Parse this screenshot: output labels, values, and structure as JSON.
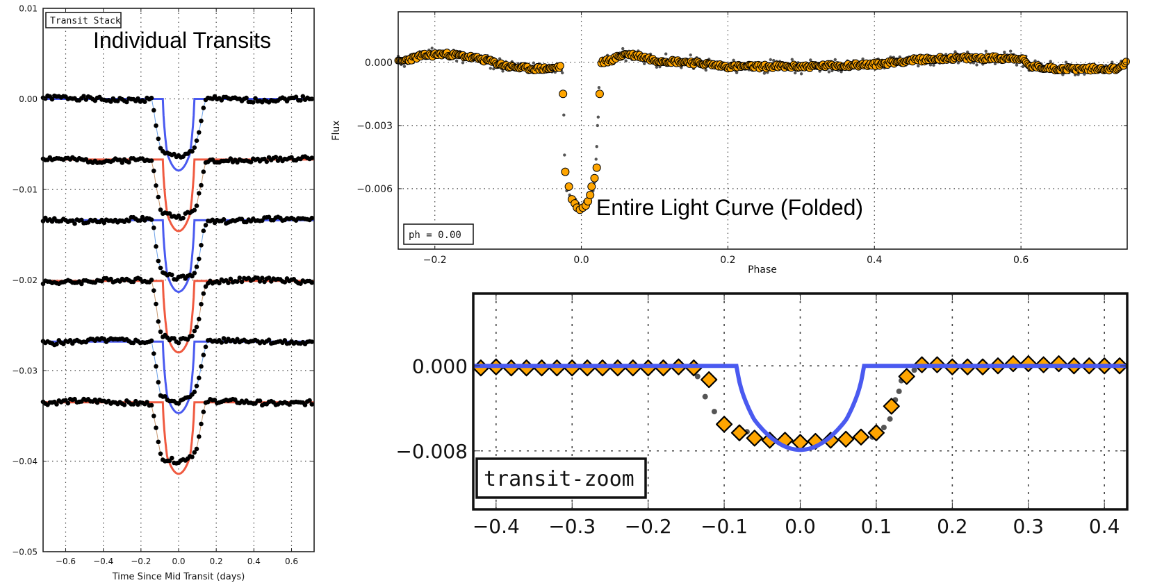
{
  "colors": {
    "blue_model": "#4a5af0",
    "blue_connector": "#6aa0e8",
    "red_model": "#f05a40",
    "red_connector": "#c89870",
    "data_point": "#000000",
    "binned_fill": "#ffa500",
    "raw_point": "#555555",
    "grid": "#444444"
  },
  "chart_data": [
    {
      "id": "individual-transits",
      "type": "line",
      "title": "Individual Transits",
      "label_box": "Transit Stack",
      "xlabel": "Time Since Mid Transit (days)",
      "ylabel": "",
      "xlim": [
        -0.72,
        0.72
      ],
      "ylim": [
        -0.05,
        0.01
      ],
      "grid": true,
      "xticks": [
        -0.6,
        -0.4,
        -0.2,
        0.0,
        0.2,
        0.4,
        0.6
      ],
      "xtick_labels": [
        "−0.6",
        "−0.4",
        "−0.2",
        "0.0",
        "0.2",
        "0.4",
        "0.6"
      ],
      "yticks": [
        0.01,
        0.0,
        -0.01,
        -0.02,
        -0.03,
        -0.04,
        -0.05
      ],
      "ytick_labels": [
        "0.01",
        "0.00",
        "−0.01",
        "−0.02",
        "−0.03",
        "−0.04",
        "−0.05"
      ],
      "model": {
        "half_width_days": 0.083,
        "ingress_days": 0.022,
        "depth": 0.0079,
        "ingress_depth": 0.006
      },
      "data_shape": {
        "x": [
          -0.14,
          -0.12,
          -0.1,
          -0.08,
          -0.06,
          -0.04,
          -0.02,
          0.0,
          0.02,
          0.04,
          0.06,
          0.08,
          0.1,
          0.12,
          0.14
        ],
        "y": [
          0.0,
          -0.0028,
          -0.0055,
          -0.0061,
          -0.0062,
          -0.0063,
          -0.0064,
          -0.0065,
          -0.0064,
          -0.0062,
          -0.006,
          -0.0058,
          -0.0048,
          -0.0026,
          -0.0004
        ]
      },
      "series": [
        {
          "name": "transit-1",
          "offset": 0.0,
          "color": "blue",
          "noise_seed": 1
        },
        {
          "name": "transit-2",
          "offset": -0.0067,
          "color": "red",
          "noise_seed": 2
        },
        {
          "name": "transit-3",
          "offset": -0.0134,
          "color": "blue",
          "noise_seed": 3
        },
        {
          "name": "transit-4",
          "offset": -0.0201,
          "color": "red",
          "noise_seed": 4
        },
        {
          "name": "transit-5",
          "offset": -0.0268,
          "color": "blue",
          "noise_seed": 5
        },
        {
          "name": "transit-6",
          "offset": -0.0335,
          "color": "red",
          "noise_seed": 6
        }
      ]
    },
    {
      "id": "folded-light-curve",
      "type": "scatter",
      "title": "Entire Light Curve (Folded)",
      "label_box": "ph = 0.00",
      "xlabel": "Phase",
      "ylabel": "Flux",
      "xlim": [
        -0.25,
        0.745
      ],
      "ylim": [
        -0.00887,
        0.0024
      ],
      "grid": true,
      "xticks": [
        -0.2,
        0.0,
        0.2,
        0.4,
        0.6
      ],
      "xtick_labels": [
        "−0.2",
        "0.0",
        "0.2",
        "0.4",
        "0.6"
      ],
      "yticks": [
        0.0,
        -0.003,
        -0.006
      ],
      "ytick_labels": [
        "0.000",
        "−0.003",
        "−0.006"
      ],
      "baseline": {
        "x": [
          -0.25,
          -0.22,
          -0.19,
          -0.16,
          -0.13,
          -0.1,
          -0.07,
          -0.04,
          -0.028,
          0.028,
          0.04,
          0.06,
          0.08,
          0.1,
          0.15,
          0.2,
          0.3,
          0.4,
          0.45,
          0.5,
          0.55,
          0.6,
          0.612,
          0.65,
          0.7,
          0.73,
          0.745
        ],
        "y": [
          0.0,
          0.0003,
          0.0004,
          0.0003,
          0.0001,
          -0.0002,
          -0.0003,
          -0.0003,
          -0.0002,
          0.0,
          0.0001,
          0.0004,
          0.0003,
          0.0001,
          0.0,
          -0.0002,
          -0.0002,
          -0.0001,
          0.0001,
          0.0002,
          0.0002,
          0.0002,
          -0.0002,
          -0.0003,
          -0.0003,
          -0.0003,
          0.0
        ]
      },
      "transit_binned": {
        "x": [
          -0.025,
          -0.022,
          -0.017,
          -0.013,
          -0.009,
          -0.006,
          -0.002,
          0.002,
          0.006,
          0.009,
          0.012,
          0.014,
          0.018,
          0.021,
          0.025
        ],
        "y": [
          -0.0015,
          -0.0052,
          -0.0059,
          -0.0065,
          -0.0067,
          -0.0069,
          -0.007,
          -0.0069,
          -0.0068,
          -0.0066,
          -0.0063,
          -0.0059,
          -0.0055,
          -0.005,
          -0.0015
        ]
      },
      "transit_raw": {
        "x": [
          -0.026,
          -0.024,
          -0.023,
          -0.02,
          -0.016,
          -0.012,
          -0.008,
          -0.004,
          0.0,
          0.004,
          0.008,
          0.012,
          0.016,
          0.018,
          0.019,
          0.02,
          0.021,
          0.022,
          0.023,
          0.024
        ],
        "y": [
          -0.0005,
          -0.0025,
          -0.0044,
          -0.0061,
          -0.0063,
          -0.0066,
          -0.0065,
          -0.0067,
          -0.0068,
          -0.0066,
          -0.0067,
          -0.0065,
          -0.0061,
          -0.0057,
          -0.0051,
          -0.0046,
          -0.004,
          -0.003,
          -0.0026,
          -0.0012
        ]
      }
    },
    {
      "id": "transit-zoom",
      "type": "scatter",
      "title": "",
      "label_box": "transit-zoom",
      "xlabel": "",
      "ylabel": "",
      "xlim": [
        -0.43,
        0.43
      ],
      "ylim": [
        -0.0135,
        0.0068
      ],
      "grid": true,
      "xticks": [
        -0.4,
        -0.3,
        -0.2,
        -0.1,
        0.0,
        0.1,
        0.2,
        0.3,
        0.4
      ],
      "xtick_labels": [
        "−0.4",
        "−0.3",
        "−0.2",
        "−0.1",
        "0.0",
        "0.1",
        "0.2",
        "0.3",
        "0.4"
      ],
      "yticks": [
        0.0,
        -0.008
      ],
      "ytick_labels": [
        "0.000",
        "−0.008"
      ],
      "model": {
        "half_width": 0.083,
        "ingress": 0.022,
        "depth": 0.0079,
        "ingress_depth": 0.005
      },
      "binned": {
        "x": [
          -0.42,
          -0.4,
          -0.38,
          -0.36,
          -0.34,
          -0.32,
          -0.3,
          -0.28,
          -0.26,
          -0.24,
          -0.22,
          -0.2,
          -0.18,
          -0.16,
          -0.14,
          -0.12,
          -0.1,
          -0.08,
          -0.06,
          -0.04,
          -0.02,
          0.0,
          0.02,
          0.04,
          0.06,
          0.08,
          0.1,
          0.12,
          0.14,
          0.16,
          0.18,
          0.2,
          0.22,
          0.24,
          0.26,
          0.28,
          0.3,
          0.32,
          0.34,
          0.36,
          0.38,
          0.4,
          0.42
        ],
        "y": [
          -0.0002,
          -0.0001,
          -0.0002,
          -0.0002,
          -0.0002,
          -0.0002,
          -0.0002,
          -0.0002,
          -0.0002,
          -0.0002,
          -0.0002,
          -0.0002,
          -0.0002,
          -0.0001,
          -0.0002,
          -0.0013,
          -0.0055,
          -0.0063,
          -0.0068,
          -0.007,
          -0.007,
          -0.0072,
          -0.0071,
          -0.007,
          -0.0069,
          -0.0067,
          -0.0063,
          -0.0038,
          -0.001,
          0.0001,
          0.0001,
          -0.0001,
          -0.0001,
          -0.0001,
          0.0,
          0.0002,
          0.0002,
          0.0001,
          0.0002,
          0.0,
          0.0,
          0.0,
          0.0
        ]
      },
      "raw": {
        "x": [
          -0.135,
          -0.125,
          -0.113,
          -0.07,
          0.095,
          0.11,
          0.118,
          0.125,
          0.13,
          0.133,
          0.142,
          0.15
        ],
        "y": [
          -0.001,
          -0.0029,
          -0.0043,
          -0.0062,
          -0.0067,
          -0.0058,
          -0.005,
          -0.0032,
          -0.0024,
          -0.0014,
          -0.0012,
          -0.0004
        ]
      }
    }
  ]
}
